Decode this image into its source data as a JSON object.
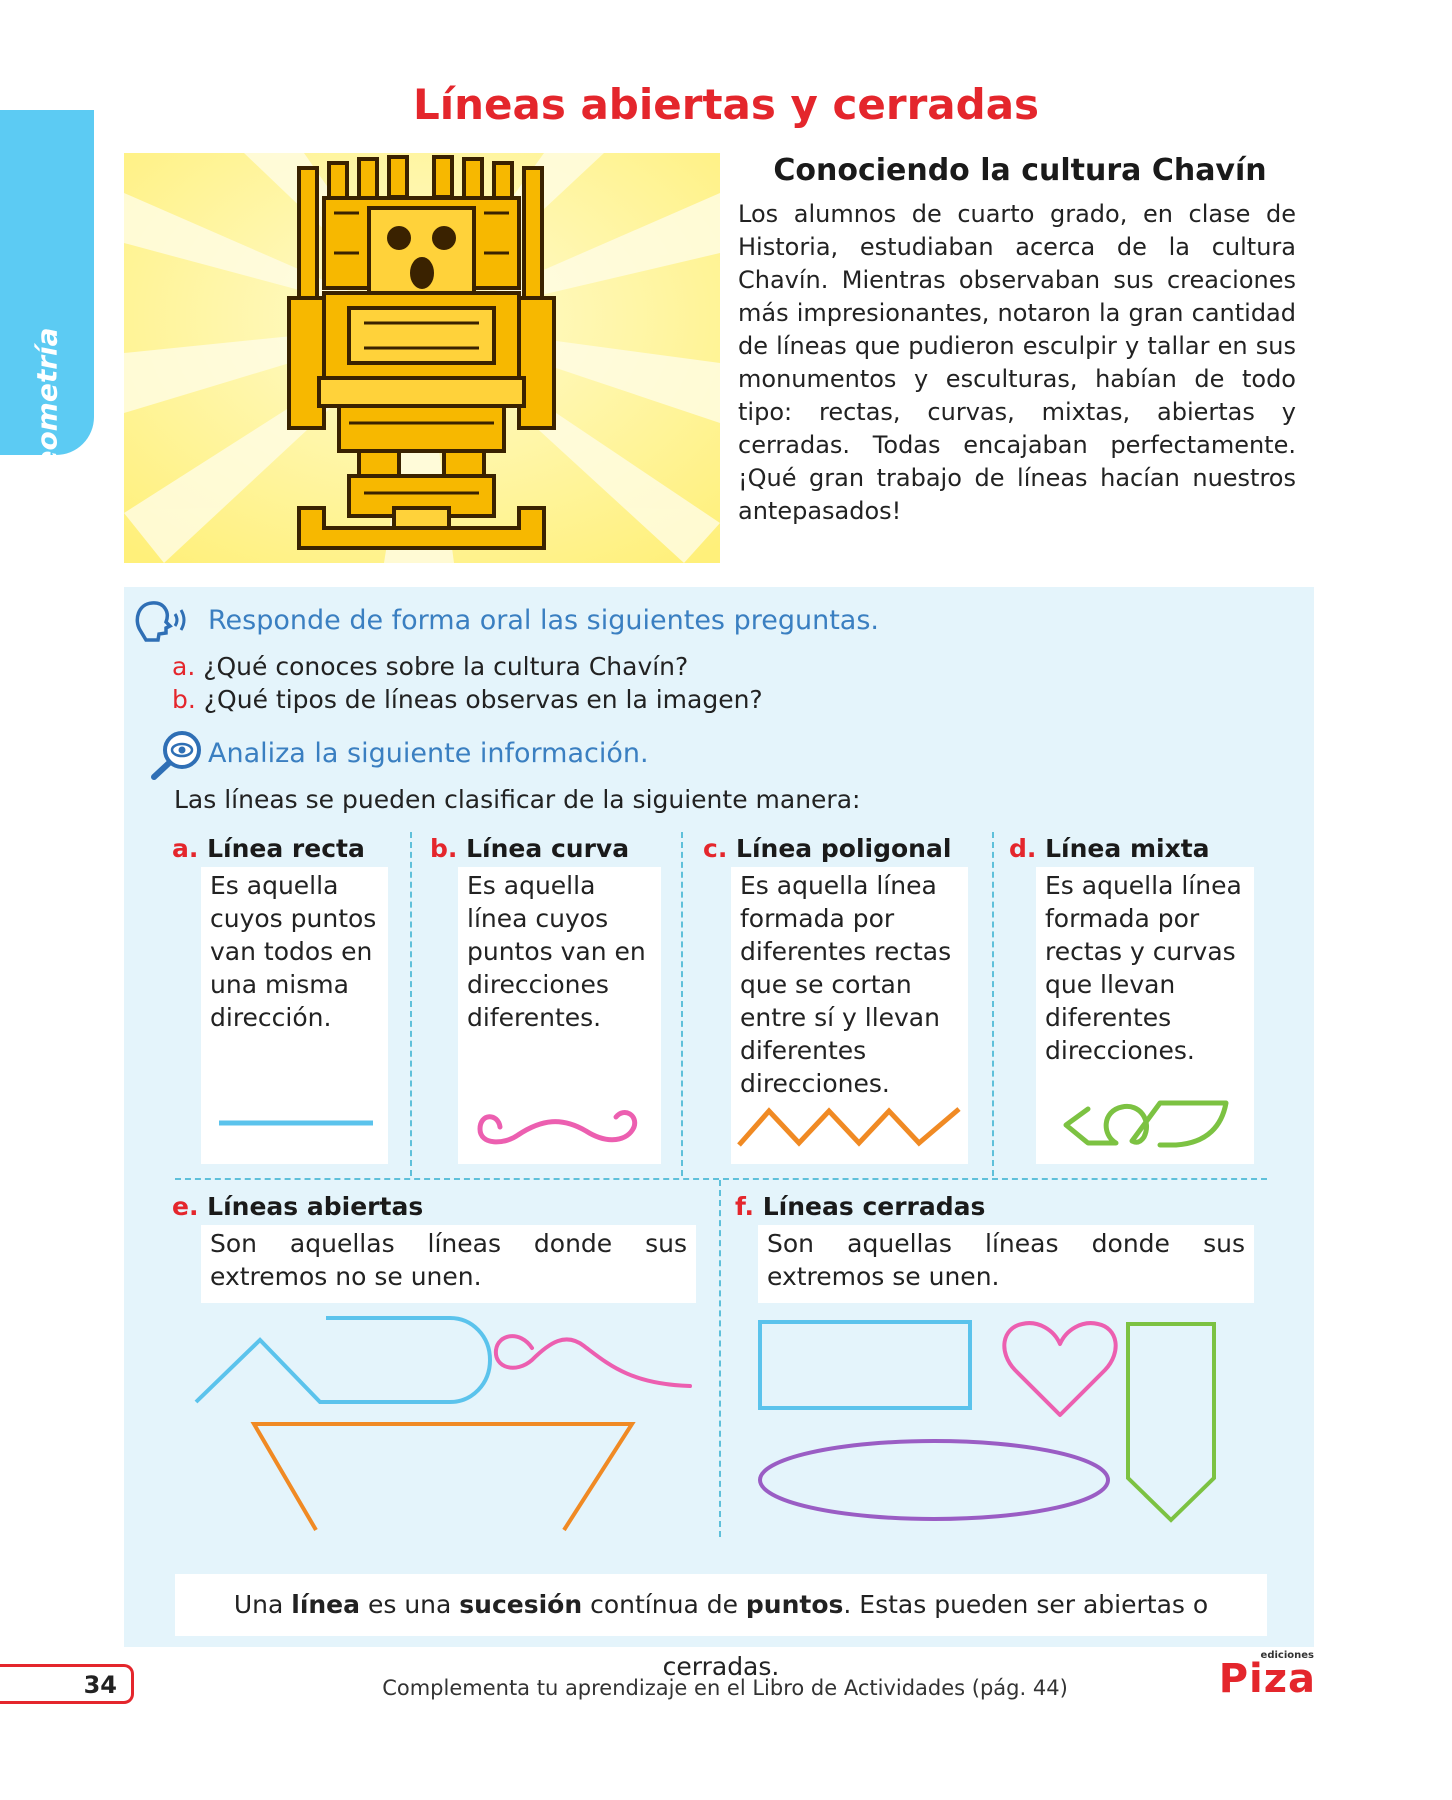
{
  "side_tab": {
    "label": "Geometría",
    "color": "#5ccbf3"
  },
  "title": "Líneas abiertas y cerradas",
  "story": {
    "title": "Conociendo la cultura Chavín",
    "text": "Los alumnos de cuarto grado, en clase de Historia, estudiaban acerca de la cultura Chavín. Mientras observaban sus creaciones más impresionantes, notaron la gran cantidad de líneas que pudieron esculpir y tallar en sus monumentos y esculturas, habían de todo tipo: rectas, curvas, mixtas, abiertas y cerradas. Todas encajaban perfectamente. ¡Qué gran trabajo de líneas hacían nuestros antepasados!"
  },
  "oral": {
    "icon": "speaking-head-icon",
    "instruction": "Responde de forma oral las siguientes preguntas.",
    "questions": [
      {
        "letter": "a.",
        "text": "¿Qué conoces sobre la cultura Chavín?"
      },
      {
        "letter": "b.",
        "text": "¿Qué tipos de líneas observas en la imagen?"
      }
    ]
  },
  "analyze": {
    "icon": "magnifier-eye-icon",
    "instruction": "Analiza la siguiente información.",
    "intro": "Las líneas se pueden clasificar de la siguiente manera:"
  },
  "types": [
    {
      "letter": "a.",
      "name": "Línea recta",
      "desc": "Es aquella cuyos puntos van todos en una misma dirección."
    },
    {
      "letter": "b.",
      "name": "Línea curva",
      "desc": "Es aquella línea cuyos puntos van en direcciones diferentes."
    },
    {
      "letter": "c.",
      "name": "Línea poligonal",
      "desc": "Es aquella línea formada por diferentes rectas que se cortan entre sí y llevan diferentes direcciones."
    },
    {
      "letter": "d.",
      "name": "Línea mixta",
      "desc": "Es aquella línea formada por rectas y curvas que llevan diferentes direcciones."
    }
  ],
  "open_closed": [
    {
      "letter": "e.",
      "name": "Líneas abiertas",
      "desc": "Son aquellas líneas donde sus extremos no se unen."
    },
    {
      "letter": "f.",
      "name": "Líneas cerradas",
      "desc": "Son aquellas líneas donde sus extremos se unen."
    }
  ],
  "summary": {
    "p1": "Una ",
    "b1": "línea",
    "p2": " es una ",
    "b2": "sucesión",
    "p3": " contínua de ",
    "b3": "puntos",
    "p4": ". Estas pueden ser abiertas o cerradas."
  },
  "footer": {
    "page_number": "34",
    "text": "Complementa tu aprendizaje en el Libro de Actividades (pág. 44)",
    "logo_small": "ediciones",
    "logo_main": "Piza"
  },
  "colors": {
    "title_red": "#e4262c",
    "instruction_blue": "#3a7fc1",
    "panel_bg": "#e4f4fb",
    "line_blue": "#5bc3ec",
    "line_pink": "#ec5fb0",
    "line_orange": "#f08a24",
    "line_green": "#7cc242",
    "line_purple": "#9a5dc4"
  }
}
